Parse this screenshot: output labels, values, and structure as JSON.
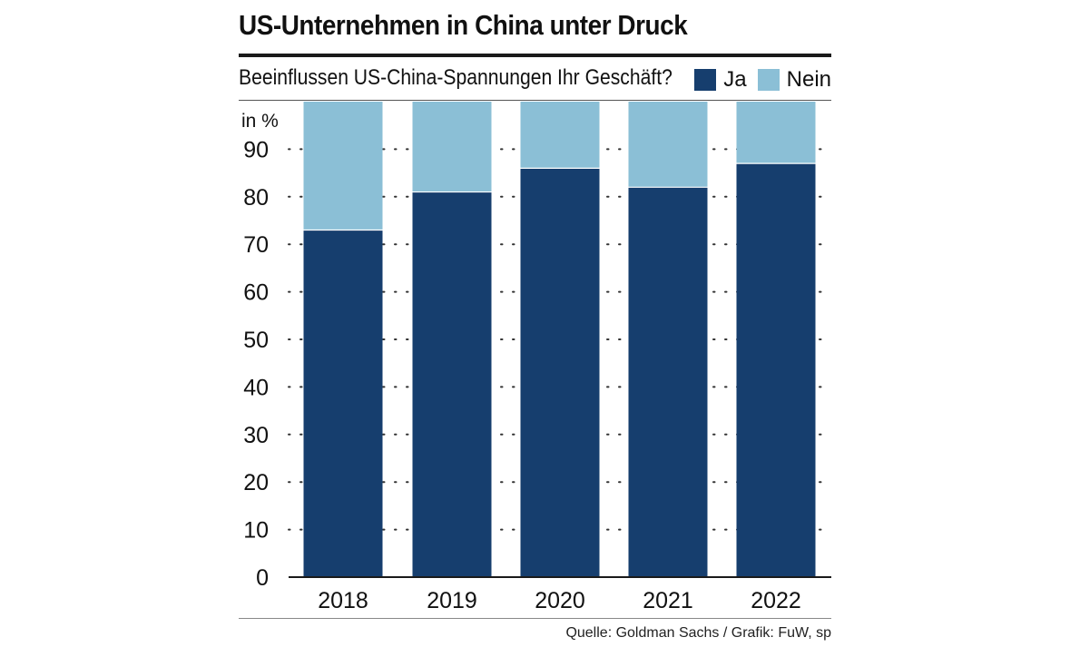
{
  "chart_data": {
    "type": "bar",
    "stacked": true,
    "title": "US-Unternehmen in China unter Druck",
    "subtitle": "Beeinflussen US-China-Spannungen Ihr Geschäft?",
    "ylabel": "in %",
    "categories": [
      "2018",
      "2019",
      "2020",
      "2021",
      "2022"
    ],
    "series": [
      {
        "name": "Ja",
        "color": "#163e6e",
        "values": [
          73,
          81,
          86,
          82,
          87
        ]
      },
      {
        "name": "Nein",
        "color": "#8bbfd6",
        "values": [
          27,
          19,
          14,
          18,
          13
        ]
      }
    ],
    "ylim": [
      0,
      100
    ],
    "yticks": [
      0,
      10,
      20,
      30,
      40,
      50,
      60,
      70,
      80,
      90
    ],
    "grid": "dotted",
    "legend": "top-right"
  },
  "source": "Quelle: Goldman Sachs / Grafik: FuW, sp"
}
